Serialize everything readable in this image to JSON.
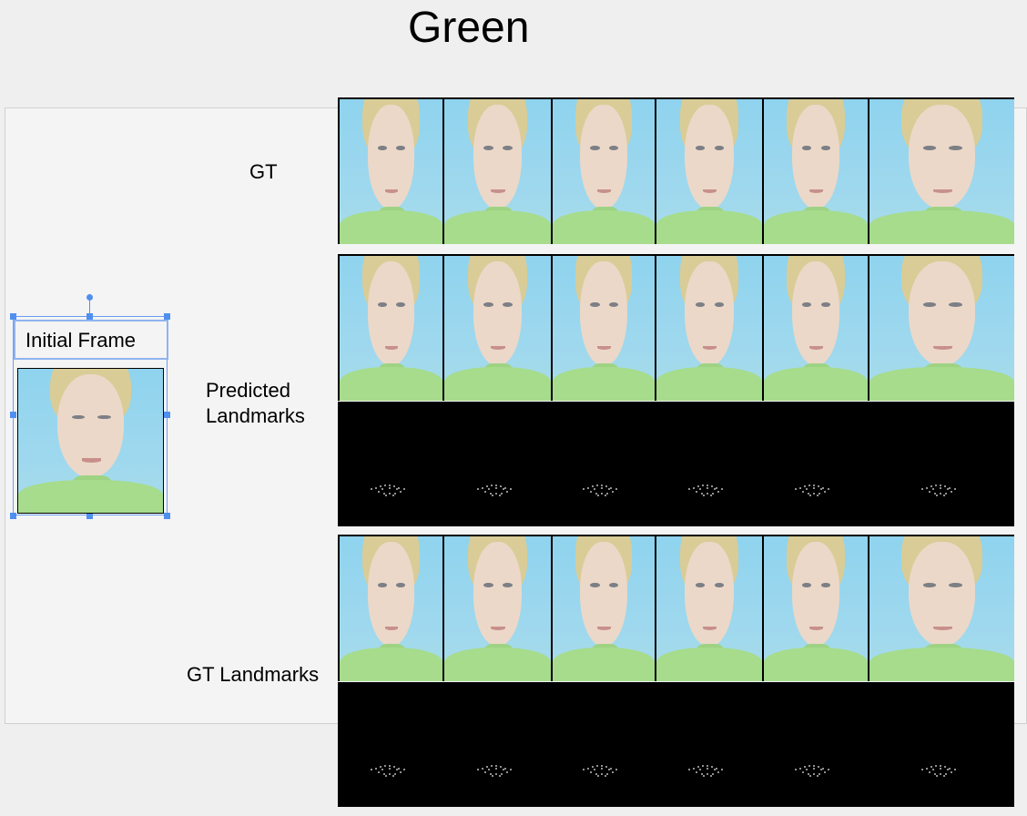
{
  "slide": {
    "title": "Green",
    "labels": {
      "gt": "GT",
      "predicted": [
        "Predicted",
        "Landmarks"
      ],
      "gt_landmarks": "GT Landmarks",
      "initial_frame": "Initial Frame"
    }
  }
}
